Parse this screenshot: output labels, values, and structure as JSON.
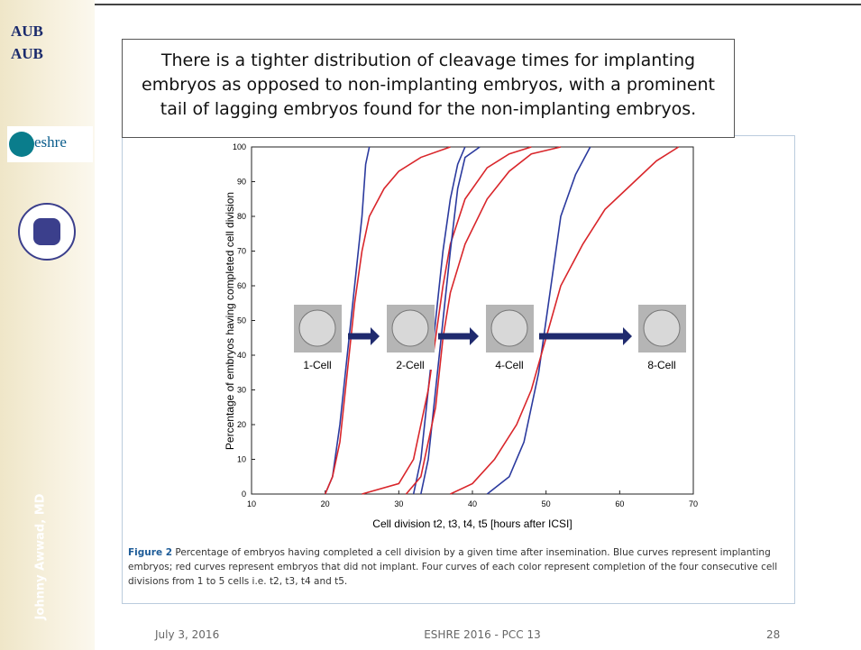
{
  "slide": {
    "logos": [
      "AUB",
      "AUB",
      "eshre"
    ],
    "author": "Johnny Awwad, MD",
    "title": "There is a tighter distribution of cleavage times for implanting embryos as opposed to non-implanting embryos, with a prominent tail of lagging embryos found for the non-implanting embryos.",
    "caption_label": "Figure 2",
    "caption_text": "Percentage of embryos having completed a cell division by a given time after insemination. Blue curves represent implanting embryos; red curves represent embryos that did not implant. Four curves of each color represent completion of the four consecutive cell divisions from 1 to 5 cells i.e. t2, t3, t4 and t5.",
    "footer": {
      "date": "July 3, 2016",
      "event": "ESHRE 2016 - PCC 13",
      "page": "28"
    }
  },
  "chart_data": {
    "type": "line",
    "x_label": "Cell division t2, t3, t4, t5 [hours after ICSI]",
    "y_label": "Percentage of embryos having completed cell division",
    "annotations": [
      "1-Cell",
      "2-Cell",
      "4-Cell",
      "8-Cell"
    ],
    "xlim": [
      10,
      70
    ],
    "xticks": [
      10,
      20,
      30,
      40,
      50,
      60,
      70
    ],
    "ylim": [
      0,
      100
    ],
    "yticks": [
      0,
      10,
      20,
      30,
      40,
      50,
      60,
      70,
      80,
      90,
      100
    ],
    "series": [
      {
        "color": "#2b3a9e",
        "x": [
          20,
          21,
          22,
          23,
          24,
          25,
          25.5,
          26
        ],
        "values": [
          0,
          5,
          20,
          40,
          60,
          80,
          95,
          100
        ]
      },
      {
        "color": "#d9262b",
        "x": [
          20,
          21,
          22,
          23,
          24,
          25,
          26,
          28,
          30,
          33,
          37
        ],
        "values": [
          0,
          5,
          15,
          35,
          55,
          70,
          80,
          88,
          93,
          97,
          100
        ]
      },
      {
        "color": "#2b3a9e",
        "x": [
          32,
          33,
          34,
          35,
          36,
          37,
          38,
          39
        ],
        "values": [
          0,
          10,
          30,
          50,
          70,
          85,
          95,
          100
        ]
      },
      {
        "color": "#d9262b",
        "x": [
          25,
          30,
          32,
          34,
          35,
          36,
          37,
          39,
          42,
          45,
          48
        ],
        "values": [
          0,
          3,
          10,
          30,
          45,
          60,
          72,
          85,
          94,
          98,
          100
        ]
      },
      {
        "color": "#2b3a9e",
        "x": [
          33,
          34,
          35,
          36,
          37,
          38,
          39,
          41
        ],
        "values": [
          0,
          10,
          30,
          50,
          70,
          88,
          97,
          100
        ]
      },
      {
        "color": "#d9262b",
        "x": [
          31,
          33,
          35,
          36,
          37,
          39,
          42,
          45,
          48,
          52
        ],
        "values": [
          0,
          5,
          25,
          45,
          58,
          72,
          85,
          93,
          98,
          100
        ]
      },
      {
        "color": "#2b3a9e",
        "x": [
          42,
          45,
          47,
          49,
          50,
          51,
          52,
          54,
          56
        ],
        "values": [
          0,
          5,
          15,
          35,
          50,
          65,
          80,
          92,
          100
        ]
      },
      {
        "color": "#d9262b",
        "x": [
          37,
          40,
          43,
          46,
          48,
          50,
          52,
          55,
          58,
          62,
          65,
          68
        ],
        "values": [
          0,
          3,
          10,
          20,
          30,
          45,
          60,
          72,
          82,
          90,
          96,
          100
        ]
      }
    ]
  }
}
